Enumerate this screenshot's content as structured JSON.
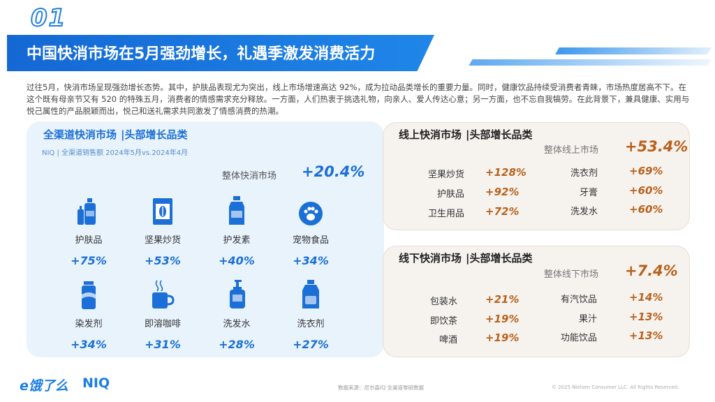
{
  "page_number": "01",
  "title": "中国快消市场在5月强劲增长，礼遇季激发消费活力",
  "intro": "过往5月，快消市场呈现强劲增长态势。其中，护肤品表现尤为突出，线上市场增速高达 92%，成为拉动品类增长的重要力量。同时，健康饮品持续受消费者青睐，市场热度居高不下。在这个既有母亲节又有 520 的特殊五月，消费者的情感需求充分释放。一方面，人们热衷于挑选礼物，向亲人、爱人传达心意；另一方面，也不忘自我犒劳。在此背景下，兼具健康、实用与悦己属性的产品脱颖而出，悦己和送礼需求共同激发了情感消费的热潮。",
  "all_channel": {
    "title": "全渠道快消市场",
    "title_suffix": "|头部增长品类",
    "subtitle": "NIQ | 全渠道销售额 2024年5月vs.2024年4月",
    "total_label": "整体快消市场",
    "total_value": "+20.4%",
    "categories": [
      {
        "name": "护肤品",
        "value": "+75%",
        "icon": "skincare-bottles-icon"
      },
      {
        "name": "坚果炒货",
        "value": "+53%",
        "icon": "nut-snack-bag-icon"
      },
      {
        "name": "护发素",
        "value": "+40%",
        "icon": "conditioner-bottle-icon"
      },
      {
        "name": "宠物食品",
        "value": "+34%",
        "icon": "paw-print-icon"
      },
      {
        "name": "染发剂",
        "value": "+34%",
        "icon": "hair-dye-can-icon"
      },
      {
        "name": "即溶咖啡",
        "value": "+31%",
        "icon": "coffee-mug-icon"
      },
      {
        "name": "洗发水",
        "value": "+28%",
        "icon": "shampoo-pump-icon"
      },
      {
        "name": "洗衣剂",
        "value": "+27%",
        "icon": "detergent-jug-icon"
      }
    ]
  },
  "online": {
    "title": "线上快消市场",
    "title_suffix": "|头部增长品类",
    "total_label": "整体线上市场",
    "total_value": "+53.4%",
    "left": [
      {
        "name": "坚果炒货",
        "value": "+128%"
      },
      {
        "name": "护肤品",
        "value": "+92%"
      },
      {
        "name": "卫生用品",
        "value": "+72%"
      }
    ],
    "right": [
      {
        "name": "洗衣剂",
        "value": "+69%"
      },
      {
        "name": "牙膏",
        "value": "+60%"
      },
      {
        "name": "洗发水",
        "value": "+60%"
      }
    ]
  },
  "offline": {
    "title": "线下快消市场",
    "title_suffix": "|头部增长品类",
    "total_label": "整体线下市场",
    "total_value": "+7.4%",
    "left": [
      {
        "name": "包装水",
        "value": "+21%"
      },
      {
        "name": "即饮茶",
        "value": "+19%"
      },
      {
        "name": "啤酒",
        "value": "+19%"
      }
    ],
    "right": [
      {
        "name": "有汽饮品",
        "value": "+14%"
      },
      {
        "name": "果汁",
        "value": "+13%"
      },
      {
        "name": "功能饮品",
        "value": "+13%"
      }
    ]
  },
  "footer": {
    "logo_eleme": "e饿了么",
    "logo_niq": "NIQ",
    "source": "数据来源：尼尔森IQ 全渠道零研数据",
    "copyright": "© 2025 Nielsen Consumer LLC. All Rights Reserved."
  },
  "colors": {
    "brand_blue": "#1b6fd6",
    "accent_orange": "#b9611c",
    "left_card_bg": "#e8f3fc",
    "right_card_bg": "#f6f3ef"
  }
}
